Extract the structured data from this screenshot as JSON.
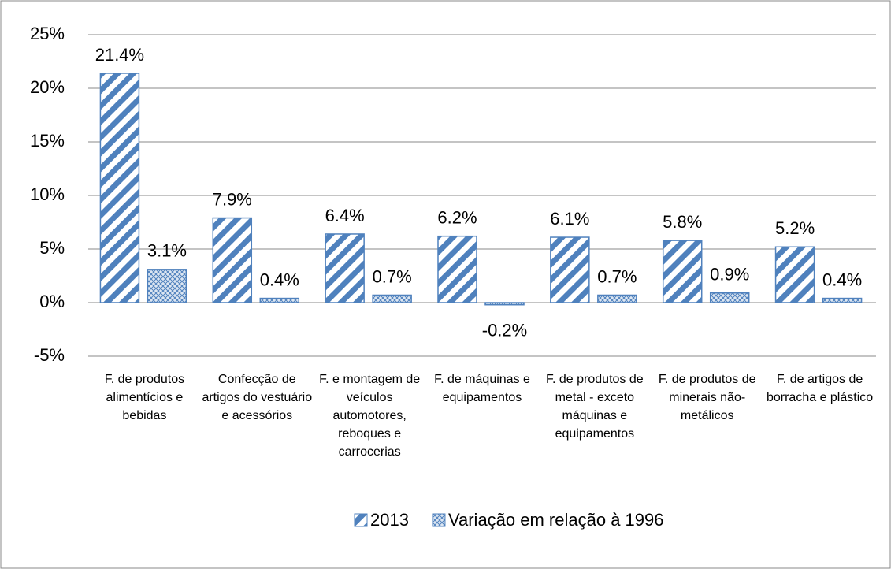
{
  "chart_data": {
    "type": "bar",
    "categories": [
      "F. de produtos alimentícios e bebidas",
      "Confecção de artigos do vestuário e acessórios",
      "F. e montagem de veículos automotores, reboques e carrocerias",
      "F. de máquinas e equipamentos",
      "F. de produtos de metal - exceto máquinas e equipamentos",
      "F. de produtos de minerais não-metálicos",
      "F. de artigos de borracha e plástico"
    ],
    "series": [
      {
        "name": "2013",
        "color": "#4f81bd",
        "pattern": "diagonal",
        "values": [
          21.4,
          7.9,
          6.4,
          6.2,
          6.1,
          5.8,
          5.2
        ],
        "value_labels": [
          "21.4%",
          "7.9%",
          "6.4%",
          "6.2%",
          "6.1%",
          "5.8%",
          "5.2%"
        ]
      },
      {
        "name": "Variação em relação à 1996",
        "color": "#4f81bd",
        "pattern": "crosshatch",
        "values": [
          3.1,
          0.4,
          0.7,
          -0.2,
          0.7,
          0.9,
          0.4
        ],
        "value_labels": [
          "3.1%",
          "0.4%",
          "0.7%",
          "-0.2%",
          "0.7%",
          "0.9%",
          "0.4%"
        ]
      }
    ],
    "ylim": [
      -5,
      25
    ],
    "yticks": [
      {
        "value": -5,
        "label": "-5%"
      },
      {
        "value": 0,
        "label": "0%"
      },
      {
        "value": 5,
        "label": "5%"
      },
      {
        "value": 10,
        "label": "10%"
      },
      {
        "value": 15,
        "label": "15%"
      },
      {
        "value": 20,
        "label": "20%"
      },
      {
        "value": 25,
        "label": "25%"
      }
    ],
    "grid": true,
    "legend": "bottom"
  }
}
